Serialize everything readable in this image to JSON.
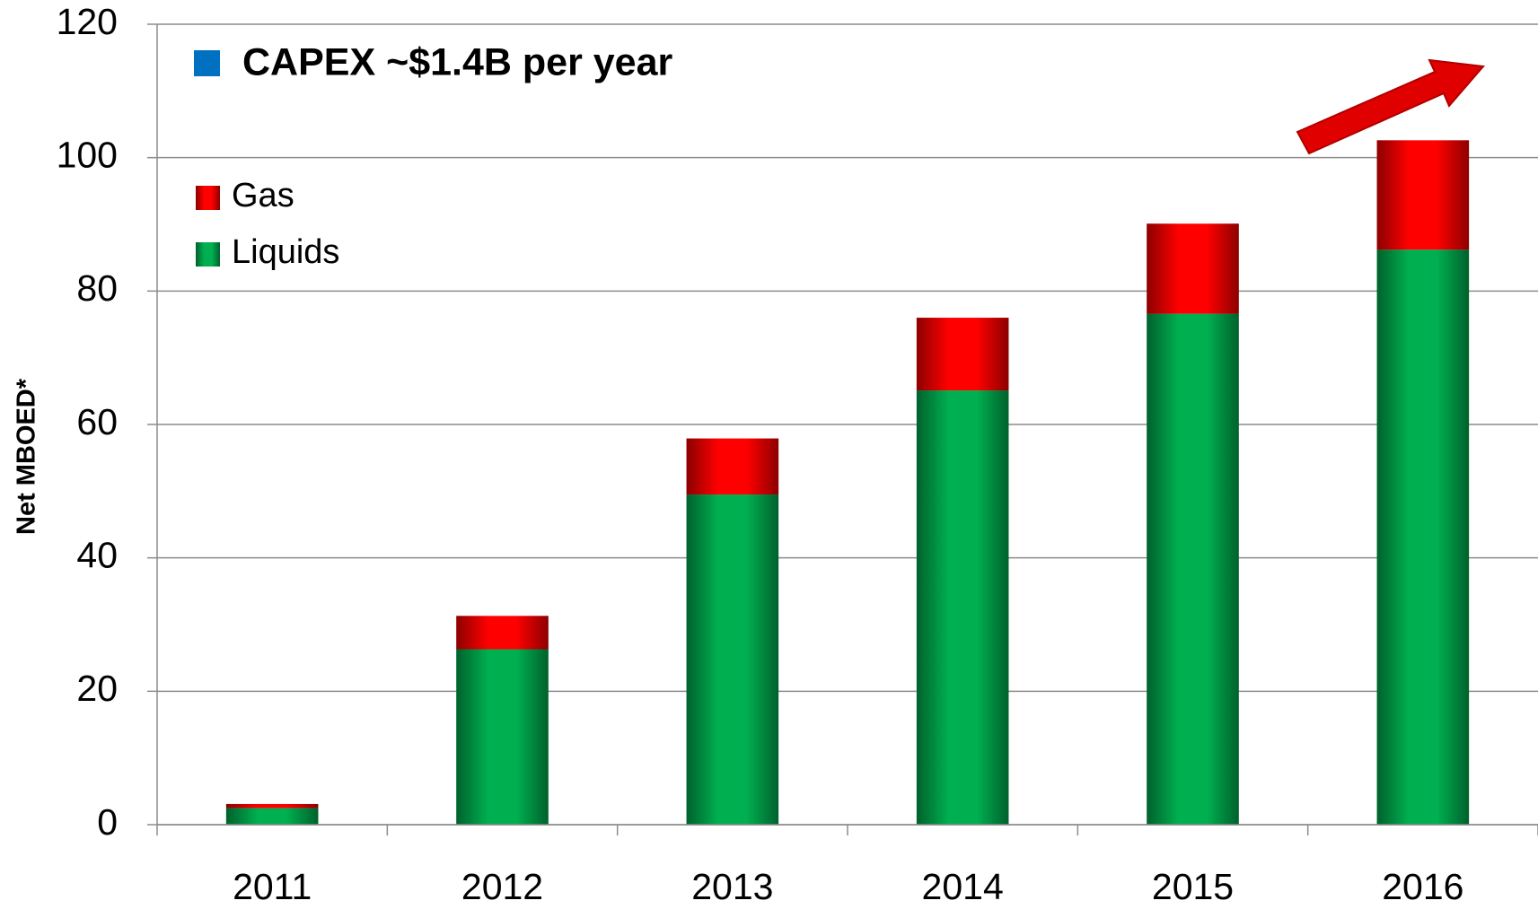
{
  "chart_data": {
    "type": "stacked_bar",
    "y_label": "Net MBOED*",
    "annotation": {
      "text": "CAPEX ~$1.4B per year",
      "color": "#0070c0"
    },
    "categories": [
      "2011",
      "2012",
      "2013",
      "2014",
      "2015",
      "2016"
    ],
    "series": [
      {
        "name": "Liquids",
        "color": "#00b050",
        "values": [
          2.5,
          26.3,
          49.5,
          65.1,
          76.6,
          86.2
        ]
      },
      {
        "name": "Gas",
        "color": "#ff0000",
        "values": [
          0.6,
          5.0,
          8.4,
          10.9,
          13.5,
          16.4
        ]
      }
    ],
    "ylim": [
      0,
      120
    ],
    "yticks": [
      0,
      20,
      40,
      60,
      80,
      100,
      120
    ],
    "grid": true
  }
}
